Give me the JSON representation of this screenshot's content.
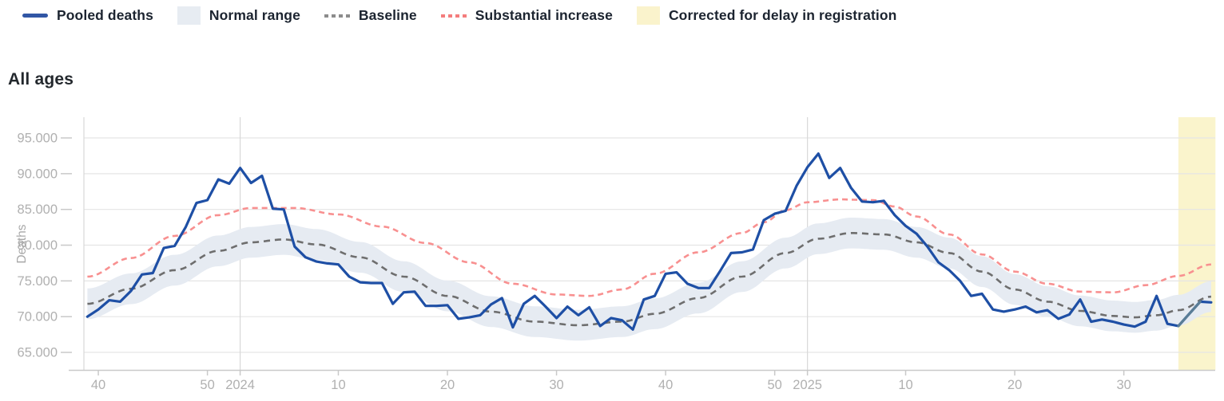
{
  "section_title": "All ages",
  "legend": {
    "items": [
      {
        "label": "Pooled deaths",
        "type": "line",
        "color": "#3156a5",
        "slug": "pooled-deaths"
      },
      {
        "label": "Normal range",
        "type": "box",
        "color": "#e7ecf2",
        "slug": "normal-range"
      },
      {
        "label": "Baseline",
        "type": "dash",
        "color": "#8c8c8c",
        "slug": "baseline"
      },
      {
        "label": "Substantial increase",
        "type": "dash",
        "color": "#f47d7d",
        "slug": "substantial-increase"
      },
      {
        "label": "Corrected for delay in registration",
        "type": "box",
        "color": "#faf3cc",
        "slug": "corrected-for-delay"
      }
    ]
  },
  "chart_data": {
    "type": "line",
    "title": "All ages",
    "xlabel": "",
    "ylabel": "Deaths",
    "x_unit": "ISO week, 2023-W39 through 2025-W38",
    "y_ticks": [
      65000,
      70000,
      75000,
      80000,
      85000,
      90000,
      95000
    ],
    "y_tick_labels": [
      "65.000",
      "70.000",
      "75.000",
      "80.000",
      "85.000",
      "90.000",
      "95.000"
    ],
    "ylim": [
      62550,
      97900
    ],
    "grid": "horizontal, plus vertical lines at year starts",
    "legend_position": "top",
    "x_ticks": [
      {
        "index": 1,
        "label": "40"
      },
      {
        "index": 11,
        "label": "50"
      },
      {
        "index": 14,
        "label": "2024"
      },
      {
        "index": 23,
        "label": "10"
      },
      {
        "index": 33,
        "label": "20"
      },
      {
        "index": 43,
        "label": "30"
      },
      {
        "index": 53,
        "label": "40"
      },
      {
        "index": 63,
        "label": "50"
      },
      {
        "index": 66,
        "label": "2025"
      },
      {
        "index": 75,
        "label": "10"
      },
      {
        "index": 85,
        "label": "20"
      },
      {
        "index": 95,
        "label": "30"
      }
    ],
    "year_gridline_indices": [
      14,
      66
    ],
    "series": [
      {
        "name": "Pooled deaths",
        "values": [
          70000,
          71000,
          72300,
          72100,
          73600,
          75900,
          76100,
          79600,
          79900,
          82500,
          85900,
          86300,
          89200,
          88600,
          90800,
          88700,
          89700,
          85100,
          85000,
          79800,
          78300,
          77700,
          77450,
          77300,
          75600,
          74800,
          74700,
          74700,
          71800,
          73400,
          73500,
          71500,
          71500,
          71600,
          69700,
          69900,
          70200,
          71700,
          72600,
          68500,
          71800,
          72900,
          71400,
          69800,
          71400,
          70200,
          71300,
          68700,
          69800,
          69500,
          68200,
          72400,
          72900,
          76000,
          76200,
          74600,
          74000,
          74000,
          76400,
          78900,
          79000,
          79400,
          83500,
          84400,
          84800,
          88300,
          90900,
          92800,
          89400,
          90800,
          88000,
          86100,
          86000,
          86200,
          84200,
          82700,
          81600,
          79800,
          77600,
          76500,
          75000,
          72900,
          73200,
          71000,
          70700,
          71000,
          71400,
          70600,
          70900,
          69700,
          70300,
          72400,
          69300,
          69600,
          69300,
          68900,
          68600,
          69300,
          72900,
          69000,
          68700,
          70400,
          72100,
          72000
        ]
      },
      {
        "name": "Baseline",
        "anchors": [
          [
            0,
            71800
          ],
          [
            4,
            73900
          ],
          [
            8,
            76500
          ],
          [
            12,
            79200
          ],
          [
            15,
            80400
          ],
          [
            18,
            80800
          ],
          [
            21,
            80100
          ],
          [
            25,
            78300
          ],
          [
            29,
            75600
          ],
          [
            33,
            72900
          ],
          [
            37,
            70700
          ],
          [
            41,
            69300
          ],
          [
            45,
            68800
          ],
          [
            49,
            69300
          ],
          [
            52,
            70400
          ],
          [
            56,
            72600
          ],
          [
            60,
            75600
          ],
          [
            64,
            78900
          ],
          [
            67,
            80900
          ],
          [
            70,
            81700
          ],
          [
            73,
            81500
          ],
          [
            76,
            80400
          ],
          [
            79,
            78900
          ],
          [
            82,
            76300
          ],
          [
            85,
            73800
          ],
          [
            88,
            72100
          ],
          [
            91,
            70800
          ],
          [
            94,
            70100
          ],
          [
            96,
            69900
          ],
          [
            98,
            70200
          ],
          [
            100,
            70900
          ],
          [
            103,
            72800
          ]
        ]
      },
      {
        "name": "Substantial increase",
        "anchors": [
          [
            0,
            75600
          ],
          [
            4,
            78200
          ],
          [
            8,
            81300
          ],
          [
            12,
            84200
          ],
          [
            15,
            85200
          ],
          [
            19,
            85200
          ],
          [
            23,
            84300
          ],
          [
            27,
            82600
          ],
          [
            31,
            80300
          ],
          [
            35,
            77600
          ],
          [
            39,
            74600
          ],
          [
            43,
            73100
          ],
          [
            46,
            72900
          ],
          [
            49,
            73800
          ],
          [
            52,
            76000
          ],
          [
            56,
            79000
          ],
          [
            60,
            81700
          ],
          [
            62,
            83200
          ],
          [
            64,
            84900
          ],
          [
            66,
            86000
          ],
          [
            69,
            86400
          ],
          [
            72,
            86300
          ],
          [
            74,
            85400
          ],
          [
            76,
            84000
          ],
          [
            79,
            81500
          ],
          [
            82,
            78700
          ],
          [
            85,
            76300
          ],
          [
            88,
            74600
          ],
          [
            91,
            73500
          ],
          [
            94,
            73400
          ],
          [
            97,
            74400
          ],
          [
            100,
            75700
          ],
          [
            103,
            77300
          ]
        ]
      },
      {
        "name": "Normal range",
        "basis": "Baseline",
        "halfwidth": 2150
      }
    ],
    "corrected_region": {
      "from_index": 100,
      "to_index": 103.4,
      "note": "Corrected for delay in registration"
    },
    "corrected_line_span": [
      100,
      102
    ],
    "colors": {
      "pooled_deaths": "#1e4fa5",
      "corrected_segment": "#5a7d96",
      "baseline": "#6e6e6e",
      "substantial_increase": "#f89090",
      "normal_range_fill": "#e6ebf2",
      "corrected_fill": "#faf4cc",
      "gridline": "#e5e5e5",
      "year_gridline": "#d8d8d8",
      "axis_line": "#c9c9c9",
      "tick_text": "#b0b0b0",
      "axis_label_text": "#a8a8a8"
    }
  }
}
